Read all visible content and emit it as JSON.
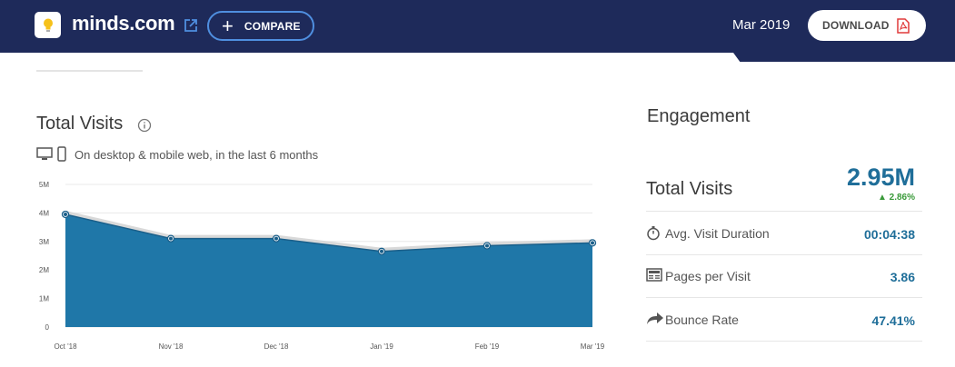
{
  "header": {
    "site_name": "minds.com",
    "compare_label": "COMPARE",
    "date": "Mar 2019",
    "download_label": "DOWNLOAD"
  },
  "total_visits_card": {
    "title": "Total Visits",
    "subtitle": "On desktop & mobile web, in the last 6 months"
  },
  "chart_data": {
    "type": "area",
    "categories": [
      "Oct '18",
      "Nov '18",
      "Dec '18",
      "Jan '19",
      "Feb '19",
      "Mar '19"
    ],
    "values": [
      3.95,
      3.1,
      3.1,
      2.65,
      2.85,
      2.95
    ],
    "y_ticks": [
      "0",
      "1M",
      "2M",
      "3M",
      "4M",
      "5M"
    ],
    "ylim": [
      0,
      5
    ],
    "grid": true,
    "color": "#1f77a8"
  },
  "engagement": {
    "title": "Engagement",
    "total_visits_label": "Total Visits",
    "total_visits_value": "2.95M",
    "total_visits_change": "2.86%",
    "metrics": [
      {
        "label": "Avg. Visit Duration",
        "value": "00:04:38",
        "icon": "stopwatch-icon"
      },
      {
        "label": "Pages per Visit",
        "value": "3.86",
        "icon": "pages-icon"
      },
      {
        "label": "Bounce Rate",
        "value": "47.41%",
        "icon": "bounce-arrow-icon"
      }
    ]
  },
  "colors": {
    "header_bg": "#1e2a5a",
    "accent": "#1f6e99",
    "positive": "#3a9a3a"
  }
}
